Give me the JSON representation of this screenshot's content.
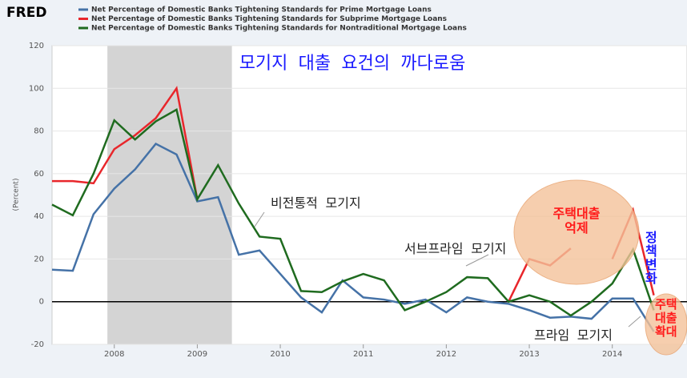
{
  "chart_data": {
    "type": "line",
    "brand": "FRED",
    "title": "모기지 대출 요건의 까다로움",
    "y_label": "(Percent)",
    "x": [
      2007.25,
      2007.5,
      2007.75,
      2008,
      2008.25,
      2008.5,
      2008.75,
      2009,
      2009.25,
      2009.5,
      2009.75,
      2010,
      2010.25,
      2010.5,
      2010.75,
      2011,
      2011.25,
      2011.5,
      2011.75,
      2012,
      2012.25,
      2012.5,
      2012.75,
      2013,
      2013.25,
      2013.5,
      2013.75,
      2014,
      2014.25,
      2014.5
    ],
    "series": [
      {
        "name": "Net Percentage of Domestic Banks Tightening Standards for Prime Mortgage Loans",
        "color": "#4572a7",
        "values": [
          15,
          14.5,
          41,
          53,
          62,
          74,
          69,
          47,
          49,
          22,
          24,
          13,
          2,
          -5,
          10,
          2,
          1,
          -1,
          1,
          -5,
          2,
          0,
          -1,
          -4,
          -7.5,
          -7,
          -8,
          1.5,
          1.5,
          -14
        ]
      },
      {
        "name": "Net Percentage of Domestic Banks Tightening Standards for Subprime Mortgage Loans",
        "color": "#e8262b",
        "values": [
          56.5,
          56.5,
          55.5,
          71.5,
          78,
          86,
          100,
          48,
          null,
          null,
          null,
          null,
          null,
          null,
          null,
          null,
          null,
          null,
          null,
          null,
          null,
          null,
          0,
          20,
          17,
          25,
          null,
          20,
          43,
          3
        ]
      },
      {
        "name": "Net Percentage of Domestic Banks Tightening Standards for Nontraditional Mortgage Loans",
        "color": "#1f6b1f",
        "values": [
          45.5,
          40.5,
          60,
          85,
          76,
          84.5,
          90,
          48,
          64,
          46,
          30.5,
          29.5,
          5,
          4.5,
          9.5,
          13,
          10,
          -4,
          0,
          4.5,
          11.5,
          11,
          0,
          3,
          0,
          -6.5,
          0,
          8.5,
          24.5,
          -4
        ]
      }
    ],
    "xlim": [
      2007.25,
      2014.9
    ],
    "xticks": [
      2008,
      2009,
      2010,
      2011,
      2012,
      2013,
      2014
    ],
    "ylim": [
      -20,
      120
    ],
    "yticks": [
      -20,
      0,
      20,
      40,
      60,
      80,
      100,
      120
    ],
    "grid": true,
    "reference_line": 0,
    "recession": [
      2007.917,
      2009.417
    ],
    "annotations": {
      "nontraditional": "비전통적 모기지",
      "subprime": "서브프라임 모기지",
      "prime": "프라임 모기지",
      "restrain": "주택대출 억제",
      "policy": "정책변화",
      "expand": "주택대출 확대"
    }
  }
}
